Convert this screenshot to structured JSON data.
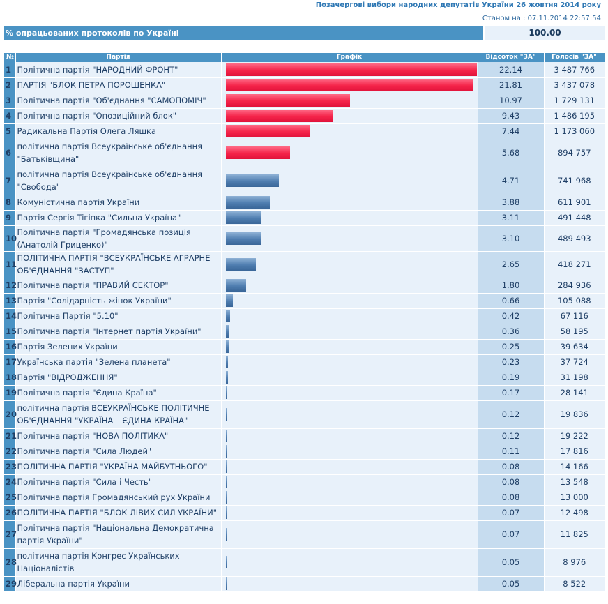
{
  "header": {
    "title": "Позачергові вибори народних депутатів України 26 жовтня 2014 року",
    "state_label": "Станом на :",
    "state_value": "07.11.2014 22:57:54"
  },
  "progress": {
    "label": "% опрацьованих протоколів по Україні",
    "value": "100.00"
  },
  "columns": {
    "num": "№",
    "party": "Партія",
    "graph": "Графік",
    "percent": "Відсоток \"ЗА\"",
    "votes": "Голосів \"ЗА\""
  },
  "colors": {
    "above_threshold": "#f5244a",
    "below_threshold": "#4f7eb0",
    "header_bg": "#4a93c4"
  },
  "chart_data": {
    "type": "bar",
    "orientation": "horizontal",
    "title": "",
    "value_max": 22.14,
    "rows": [
      {
        "n": "1",
        "party": "Політична партія \"НАРОДНИЙ ФРОНТ\"",
        "pct": "22.14",
        "votes": "3 487 766",
        "value": 22.14,
        "color": "red"
      },
      {
        "n": "2",
        "party": "ПАРТІЯ \"БЛОК ПЕТРА ПОРОШЕНКА\"",
        "pct": "21.81",
        "votes": "3 437 078",
        "value": 21.81,
        "color": "red"
      },
      {
        "n": "3",
        "party": "Політична партія \"Об'єднання \"САМОПОМІЧ\"",
        "pct": "10.97",
        "votes": "1 729 131",
        "value": 10.97,
        "color": "red"
      },
      {
        "n": "4",
        "party": "Політична партія \"Опозиційний блок\"",
        "pct": "9.43",
        "votes": "1 486 195",
        "value": 9.43,
        "color": "red"
      },
      {
        "n": "5",
        "party": "Радикальна Партія Олега Ляшка",
        "pct": "7.44",
        "votes": "1 173 060",
        "value": 7.44,
        "color": "red"
      },
      {
        "n": "6",
        "party": "політична партія Всеукраїнське об'єднання \"Батьківщина\"",
        "pct": "5.68",
        "votes": "894 757",
        "value": 5.68,
        "color": "red"
      },
      {
        "n": "7",
        "party": "політична партія Всеукраїнське об'єднання \"Свобода\"",
        "pct": "4.71",
        "votes": "741 968",
        "value": 4.71,
        "color": "blue"
      },
      {
        "n": "8",
        "party": "Комуністична партія України",
        "pct": "3.88",
        "votes": "611 901",
        "value": 3.88,
        "color": "blue"
      },
      {
        "n": "9",
        "party": "Партія Сергія Тігіпка \"Сильна Україна\"",
        "pct": "3.11",
        "votes": "491 448",
        "value": 3.11,
        "color": "blue"
      },
      {
        "n": "10",
        "party": "Політична партія \"Громадянська позиція (Анатолій Гриценко)\"",
        "pct": "3.10",
        "votes": "489 493",
        "value": 3.1,
        "color": "blue"
      },
      {
        "n": "11",
        "party": "ПОЛІТИЧНА ПАРТІЯ \"ВСЕУКРАЇНСЬКЕ АГРАРНЕ ОБ'ЄДНАННЯ \"ЗАСТУП\"",
        "pct": "2.65",
        "votes": "418 271",
        "value": 2.65,
        "color": "blue"
      },
      {
        "n": "12",
        "party": "Політична партія \"ПРАВИЙ СЕКТОР\"",
        "pct": "1.80",
        "votes": "284 936",
        "value": 1.8,
        "color": "blue"
      },
      {
        "n": "13",
        "party": "Партія \"Солідарність жінок України\"",
        "pct": "0.66",
        "votes": "105 088",
        "value": 0.66,
        "color": "blue"
      },
      {
        "n": "14",
        "party": "Політична Партія \"5.10\"",
        "pct": "0.42",
        "votes": "67 116",
        "value": 0.42,
        "color": "blue"
      },
      {
        "n": "15",
        "party": "Політична партія \"Інтернет партія України\"",
        "pct": "0.36",
        "votes": "58 195",
        "value": 0.36,
        "color": "blue"
      },
      {
        "n": "16",
        "party": "Партія Зелених України",
        "pct": "0.25",
        "votes": "39 634",
        "value": 0.25,
        "color": "blue"
      },
      {
        "n": "17",
        "party": "Українська партія \"Зелена планета\"",
        "pct": "0.23",
        "votes": "37 724",
        "value": 0.23,
        "color": "blue"
      },
      {
        "n": "18",
        "party": "Партія \"ВІДРОДЖЕННЯ\"",
        "pct": "0.19",
        "votes": "31 198",
        "value": 0.19,
        "color": "blue"
      },
      {
        "n": "19",
        "party": "Політична партія \"Єдина Країна\"",
        "pct": "0.17",
        "votes": "28 141",
        "value": 0.17,
        "color": "blue"
      },
      {
        "n": "20",
        "party": "політична партія ВСЕУКРАЇНСЬКЕ ПОЛІТИЧНЕ ОБ'ЄДНАННЯ \"УКРАЇНА – ЄДИНА КРАЇНА\"",
        "pct": "0.12",
        "votes": "19 836",
        "value": 0.12,
        "color": "blue"
      },
      {
        "n": "21",
        "party": "Політична партія \"НОВА ПОЛІТИКА\"",
        "pct": "0.12",
        "votes": "19 222",
        "value": 0.12,
        "color": "blue"
      },
      {
        "n": "22",
        "party": "Політична партія \"Сила Людей\"",
        "pct": "0.11",
        "votes": "17 816",
        "value": 0.11,
        "color": "blue"
      },
      {
        "n": "23",
        "party": "ПОЛІТИЧНА ПАРТІЯ \"УКРАЇНА МАЙБУТНЬОГО\"",
        "pct": "0.08",
        "votes": "14 166",
        "value": 0.08,
        "color": "blue"
      },
      {
        "n": "24",
        "party": "Політична партія \"Сила і Честь\"",
        "pct": "0.08",
        "votes": "13 548",
        "value": 0.08,
        "color": "blue"
      },
      {
        "n": "25",
        "party": "Політична партія Громадянський рух України",
        "pct": "0.08",
        "votes": "13 000",
        "value": 0.08,
        "color": "blue"
      },
      {
        "n": "26",
        "party": "ПОЛІТИЧНА ПАРТІЯ \"БЛОК ЛІВИХ СИЛ УКРАЇНИ\"",
        "pct": "0.07",
        "votes": "12 498",
        "value": 0.07,
        "color": "blue"
      },
      {
        "n": "27",
        "party": "Політична партія \"Національна Демократична партія України\"",
        "pct": "0.07",
        "votes": "11 825",
        "value": 0.07,
        "color": "blue"
      },
      {
        "n": "28",
        "party": "політична партія Конгрес Українських Націоналістів",
        "pct": "0.05",
        "votes": "8 976",
        "value": 0.05,
        "color": "blue"
      },
      {
        "n": "29",
        "party": "Ліберальна партія України",
        "pct": "0.05",
        "votes": "8 522",
        "value": 0.05,
        "color": "blue"
      }
    ]
  }
}
